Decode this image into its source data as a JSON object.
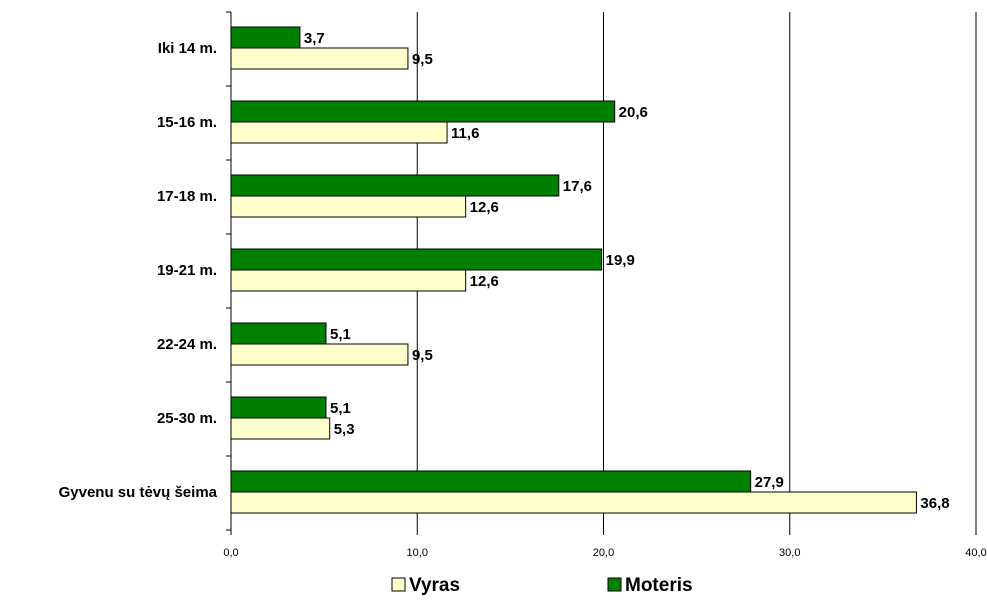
{
  "chart_data": {
    "type": "bar",
    "orientation": "horizontal",
    "categories": [
      "Iki 14 m.",
      "15-16 m.",
      "17-18 m.",
      "19-21 m.",
      "22-24 m.",
      "25-30 m.",
      "Gyvenu su tėvų šeima"
    ],
    "series": [
      {
        "name": "Moteris",
        "values": [
          3.7,
          20.6,
          17.6,
          19.9,
          5.1,
          5.1,
          27.9
        ],
        "labels": [
          "3,7",
          "20,6",
          "17,6",
          "19,9",
          "5,1",
          "5,1",
          "27,9"
        ],
        "color": "#008000"
      },
      {
        "name": "Vyras",
        "values": [
          9.5,
          11.6,
          12.6,
          12.6,
          9.5,
          5.3,
          36.8
        ],
        "labels": [
          "9,5",
          "11,6",
          "12,6",
          "12,6",
          "9,5",
          "5,3",
          "36,8"
        ],
        "color": "#FFFFCC"
      }
    ],
    "xlim": [
      0,
      40
    ],
    "xticks": [
      0,
      10,
      20,
      30,
      40
    ],
    "xtick_labels": [
      "0,0",
      "10,0",
      "20,0",
      "30,0",
      "40,0"
    ],
    "grid": "vertical",
    "legend_position": "bottom",
    "legend_order": [
      "Vyras",
      "Moteris"
    ],
    "title": "",
    "xlabel": "",
    "ylabel": ""
  }
}
